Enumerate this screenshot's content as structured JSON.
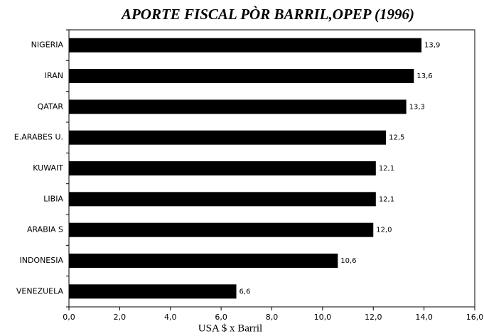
{
  "chart_data": {
    "type": "barh",
    "title": "APORTE FISCAL PÒR BARRIL,OPEP (1996)",
    "x_label": "USA $ x Barril",
    "categories": [
      "NIGERIA",
      "IRAN",
      "QATAR",
      "E.ARABES U.",
      "KUWAIT",
      "LIBIA",
      "ARABIA S",
      "INDONESIA",
      "VENEZUELA"
    ],
    "values": [
      13.9,
      13.6,
      13.3,
      12.5,
      12.1,
      12.1,
      12.0,
      10.6,
      6.6
    ],
    "value_labels": [
      "13,9",
      "13,6",
      "13,3",
      "12,5",
      "12,1",
      "12,1",
      "12,0",
      "10,6",
      "6,6"
    ],
    "color": "#000000",
    "xlim": [
      0,
      16
    ],
    "xticks": [
      {
        "value": 0,
        "label": "0,0"
      },
      {
        "value": 2,
        "label": "2,0"
      },
      {
        "value": 4,
        "label": "4,0"
      },
      {
        "value": 6,
        "label": "6,0"
      },
      {
        "value": 8,
        "label": "8,0"
      },
      {
        "value": 10,
        "label": "10,0"
      },
      {
        "value": 12,
        "label": "12,0"
      },
      {
        "value": 14,
        "label": "14,0"
      },
      {
        "value": 16,
        "label": "16,0"
      }
    ],
    "grid": false
  }
}
